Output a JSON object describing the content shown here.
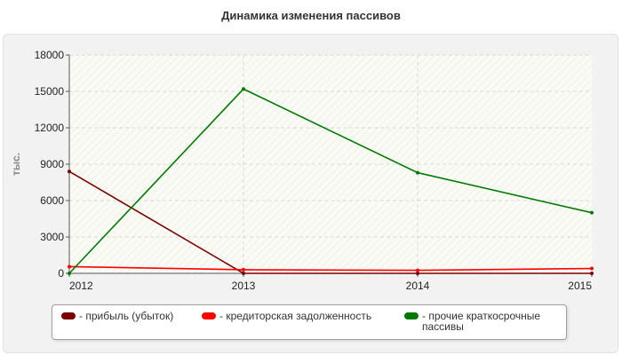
{
  "title": "Динамика изменения пассивов",
  "chart_data": {
    "type": "line",
    "x": [
      "2012",
      "2013",
      "2014",
      "2015"
    ],
    "ylabel": "тыс.",
    "ylim": [
      0,
      18000
    ],
    "yticks": [
      0,
      3000,
      6000,
      9000,
      12000,
      15000,
      18000
    ],
    "grid": true,
    "legend_position": "bottom",
    "series": [
      {
        "name": "- прибыль (убыток)",
        "color": "#7a0000",
        "values": [
          8400,
          0,
          0,
          0
        ]
      },
      {
        "name": "- кредиторская задолженность",
        "color": "#ff0000",
        "values": [
          550,
          300,
          250,
          400
        ]
      },
      {
        "name": "- прочие краткосрочные пассивы",
        "color": "#007a00",
        "values": [
          0,
          15200,
          8300,
          5000
        ]
      }
    ]
  }
}
